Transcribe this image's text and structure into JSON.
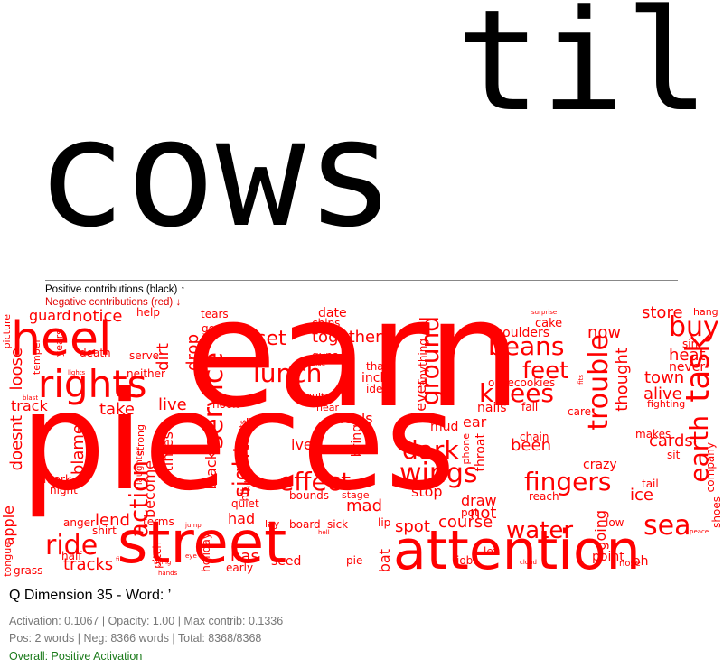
{
  "chart_data": {
    "type": "wordcloud",
    "positive_words": [
      "cows",
      "til"
    ],
    "negative_words": [
      "earn",
      "pieces",
      "street",
      "attention",
      "heel",
      "rights",
      "service",
      "lunch",
      "beans",
      "knees",
      "ground",
      "trouble",
      "task",
      "buy",
      "feet",
      "earth",
      "sea",
      "wings",
      "dark",
      "fingers",
      "effect",
      "water",
      "ride",
      "action",
      "sights",
      "set",
      "together",
      "now",
      "alive",
      "heat",
      "store",
      "town",
      "thought",
      "never",
      "cards",
      "been",
      "crazy",
      "ice",
      "tail",
      "going",
      "course",
      "spot",
      "mad",
      "spot",
      "not",
      "draw",
      "stop",
      "tracks",
      "lend",
      "live",
      "take",
      "notice",
      "guard",
      "loose",
      "doesnt",
      "apple",
      "track",
      "blame",
      "become",
      "times",
      "black",
      "dirt",
      "drop",
      "goat",
      "date",
      "chips",
      "guns",
      "thats",
      "inch",
      "idea",
      "running",
      "anything",
      "ever",
      "mud",
      "throat",
      "phone",
      "heels",
      "ear",
      "bring",
      "ive",
      "bounds",
      "stage",
      "pot",
      "reach",
      "shoulders",
      "cake",
      "chain",
      "makes",
      "sit",
      "company",
      "shoes",
      "hang",
      "fighting",
      "sin",
      "care",
      "fall",
      "nails",
      "oncecookies",
      "hook",
      "run",
      "quiet",
      "had",
      "has",
      "seed",
      "board",
      "sick",
      "lip",
      "bat",
      "job",
      "let",
      "point",
      "low",
      "oh",
      "early",
      "holiday",
      "pitch",
      "terms",
      "shirt",
      "anger",
      "half",
      "grass",
      "tongue",
      "night",
      "mark",
      "help",
      "serve",
      "neither",
      "death",
      "picture",
      "years",
      "temper",
      "tears",
      "strong",
      "laughter",
      "hit",
      "bits",
      "lay",
      "stride",
      "quite",
      "hear",
      "hits",
      "blast",
      "pie",
      "hell",
      "lights",
      "cloud",
      "surprise",
      "nose",
      "peace",
      "jump",
      "hands",
      "flying",
      "file",
      "fits",
      "eye"
    ],
    "title": "Q Dimension 35 - Word: ’"
  },
  "legend": {
    "positive": "Positive contributions (black) ↑",
    "negative": "Negative contributions (red) ↓"
  },
  "info": {
    "title": "Q Dimension 35 - Word: ’",
    "stats": "Activation: 0.1067 | Opacity: 1.00 | Max contrib: 0.1336",
    "counts": "Pos: 2 words | Neg: 8366 words | Total: 8368/8368",
    "overall": "Overall: Positive Activation"
  },
  "colors": {
    "positive": "#000000",
    "negative": "#ff0000",
    "overall": "#1a7a1a"
  }
}
